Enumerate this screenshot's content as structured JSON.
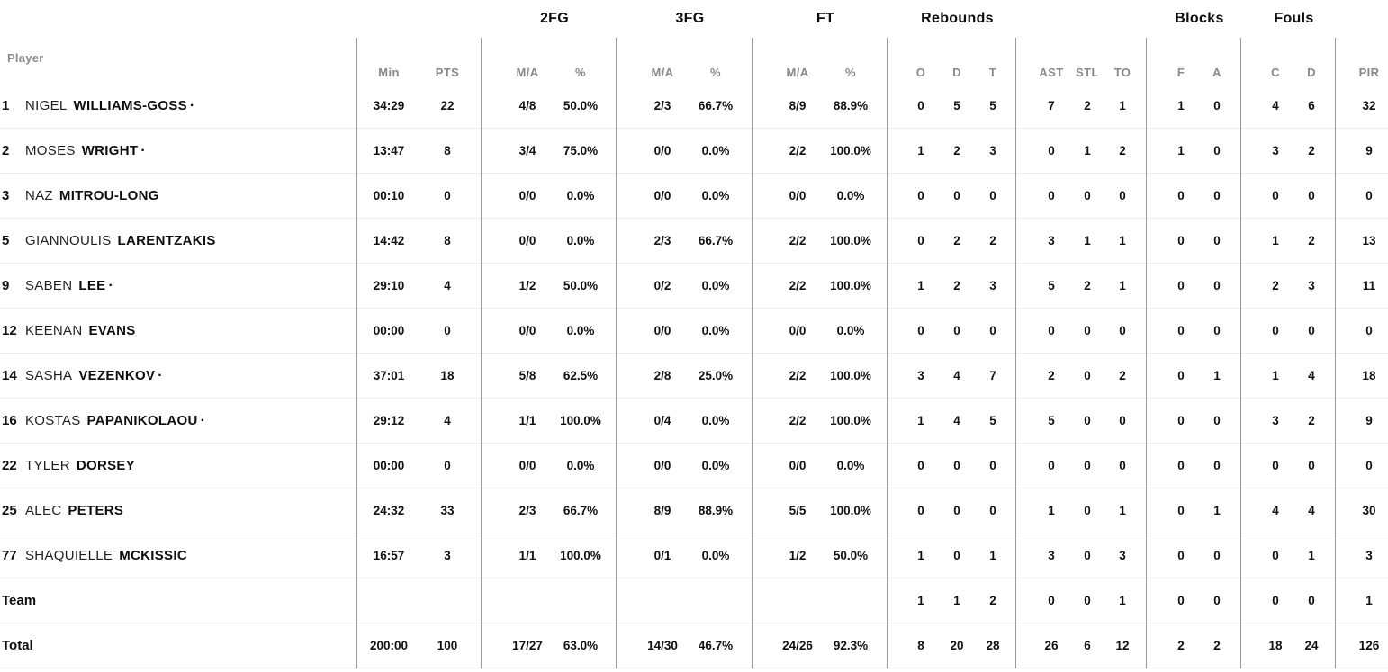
{
  "colors": {
    "text": "#0f0f0f",
    "muted_header": "#8a8a8a",
    "column_divider": "#999999",
    "row_separator": "#ededed",
    "background": "#ffffff"
  },
  "starter_mark": "·",
  "header": {
    "player_label": "Player",
    "groups": {
      "fg2": "2FG",
      "fg3": "3FG",
      "ft": "FT",
      "rebounds": "Rebounds",
      "blocks": "Blocks",
      "fouls": "Fouls"
    },
    "columns": [
      "Min",
      "PTS",
      "M/A",
      "%",
      "M/A",
      "%",
      "M/A",
      "%",
      "O",
      "D",
      "T",
      "AST",
      "STL",
      "TO",
      "F",
      "A",
      "C",
      "D",
      "PIR"
    ]
  },
  "rows": [
    {
      "number": "1",
      "first": "NIGEL",
      "last": "WILLIAMS-GOSS",
      "starter": true,
      "stats": [
        "34:29",
        "22",
        "4/8",
        "50.0%",
        "2/3",
        "66.7%",
        "8/9",
        "88.9%",
        "0",
        "5",
        "5",
        "7",
        "2",
        "1",
        "1",
        "0",
        "4",
        "6",
        "32"
      ]
    },
    {
      "number": "2",
      "first": "MOSES",
      "last": "WRIGHT",
      "starter": true,
      "stats": [
        "13:47",
        "8",
        "3/4",
        "75.0%",
        "0/0",
        "0.0%",
        "2/2",
        "100.0%",
        "1",
        "2",
        "3",
        "0",
        "1",
        "2",
        "1",
        "0",
        "3",
        "2",
        "9"
      ]
    },
    {
      "number": "3",
      "first": "NAZ",
      "last": "MITROU-LONG",
      "starter": false,
      "stats": [
        "00:10",
        "0",
        "0/0",
        "0.0%",
        "0/0",
        "0.0%",
        "0/0",
        "0.0%",
        "0",
        "0",
        "0",
        "0",
        "0",
        "0",
        "0",
        "0",
        "0",
        "0",
        "0"
      ]
    },
    {
      "number": "5",
      "first": "GIANNOULIS",
      "last": "LARENTZAKIS",
      "starter": false,
      "stats": [
        "14:42",
        "8",
        "0/0",
        "0.0%",
        "2/3",
        "66.7%",
        "2/2",
        "100.0%",
        "0",
        "2",
        "2",
        "3",
        "1",
        "1",
        "0",
        "0",
        "1",
        "2",
        "13"
      ]
    },
    {
      "number": "9",
      "first": "SABEN",
      "last": "LEE",
      "starter": true,
      "stats": [
        "29:10",
        "4",
        "1/2",
        "50.0%",
        "0/2",
        "0.0%",
        "2/2",
        "100.0%",
        "1",
        "2",
        "3",
        "5",
        "2",
        "1",
        "0",
        "0",
        "2",
        "3",
        "11"
      ]
    },
    {
      "number": "12",
      "first": "KEENAN",
      "last": "EVANS",
      "starter": false,
      "stats": [
        "00:00",
        "0",
        "0/0",
        "0.0%",
        "0/0",
        "0.0%",
        "0/0",
        "0.0%",
        "0",
        "0",
        "0",
        "0",
        "0",
        "0",
        "0",
        "0",
        "0",
        "0",
        "0"
      ]
    },
    {
      "number": "14",
      "first": "SASHA",
      "last": "VEZENKOV",
      "starter": true,
      "stats": [
        "37:01",
        "18",
        "5/8",
        "62.5%",
        "2/8",
        "25.0%",
        "2/2",
        "100.0%",
        "3",
        "4",
        "7",
        "2",
        "0",
        "2",
        "0",
        "1",
        "1",
        "4",
        "18"
      ]
    },
    {
      "number": "16",
      "first": "KOSTAS",
      "last": "PAPANIKOLAOU",
      "starter": true,
      "stats": [
        "29:12",
        "4",
        "1/1",
        "100.0%",
        "0/4",
        "0.0%",
        "2/2",
        "100.0%",
        "1",
        "4",
        "5",
        "5",
        "0",
        "0",
        "0",
        "0",
        "3",
        "2",
        "9"
      ]
    },
    {
      "number": "22",
      "first": "TYLER",
      "last": "DORSEY",
      "starter": false,
      "stats": [
        "00:00",
        "0",
        "0/0",
        "0.0%",
        "0/0",
        "0.0%",
        "0/0",
        "0.0%",
        "0",
        "0",
        "0",
        "0",
        "0",
        "0",
        "0",
        "0",
        "0",
        "0",
        "0"
      ]
    },
    {
      "number": "25",
      "first": "ALEC",
      "last": "PETERS",
      "starter": false,
      "stats": [
        "24:32",
        "33",
        "2/3",
        "66.7%",
        "8/9",
        "88.9%",
        "5/5",
        "100.0%",
        "0",
        "0",
        "0",
        "1",
        "0",
        "1",
        "0",
        "1",
        "4",
        "4",
        "30"
      ]
    },
    {
      "number": "77",
      "first": "SHAQUIELLE",
      "last": "MCKISSIC",
      "starter": false,
      "stats": [
        "16:57",
        "3",
        "1/1",
        "100.0%",
        "0/1",
        "0.0%",
        "1/2",
        "50.0%",
        "1",
        "0",
        "1",
        "3",
        "0",
        "3",
        "0",
        "0",
        "0",
        "1",
        "3"
      ]
    },
    {
      "label": "Team",
      "stats": [
        "",
        "",
        "",
        "",
        "",
        "",
        "",
        "",
        "1",
        "1",
        "2",
        "0",
        "0",
        "1",
        "0",
        "0",
        "0",
        "0",
        "1"
      ]
    },
    {
      "label": "Total",
      "stats": [
        "200:00",
        "100",
        "17/27",
        "63.0%",
        "14/30",
        "46.7%",
        "24/26",
        "92.3%",
        "8",
        "20",
        "28",
        "26",
        "6",
        "12",
        "2",
        "2",
        "18",
        "24",
        "126"
      ]
    }
  ]
}
